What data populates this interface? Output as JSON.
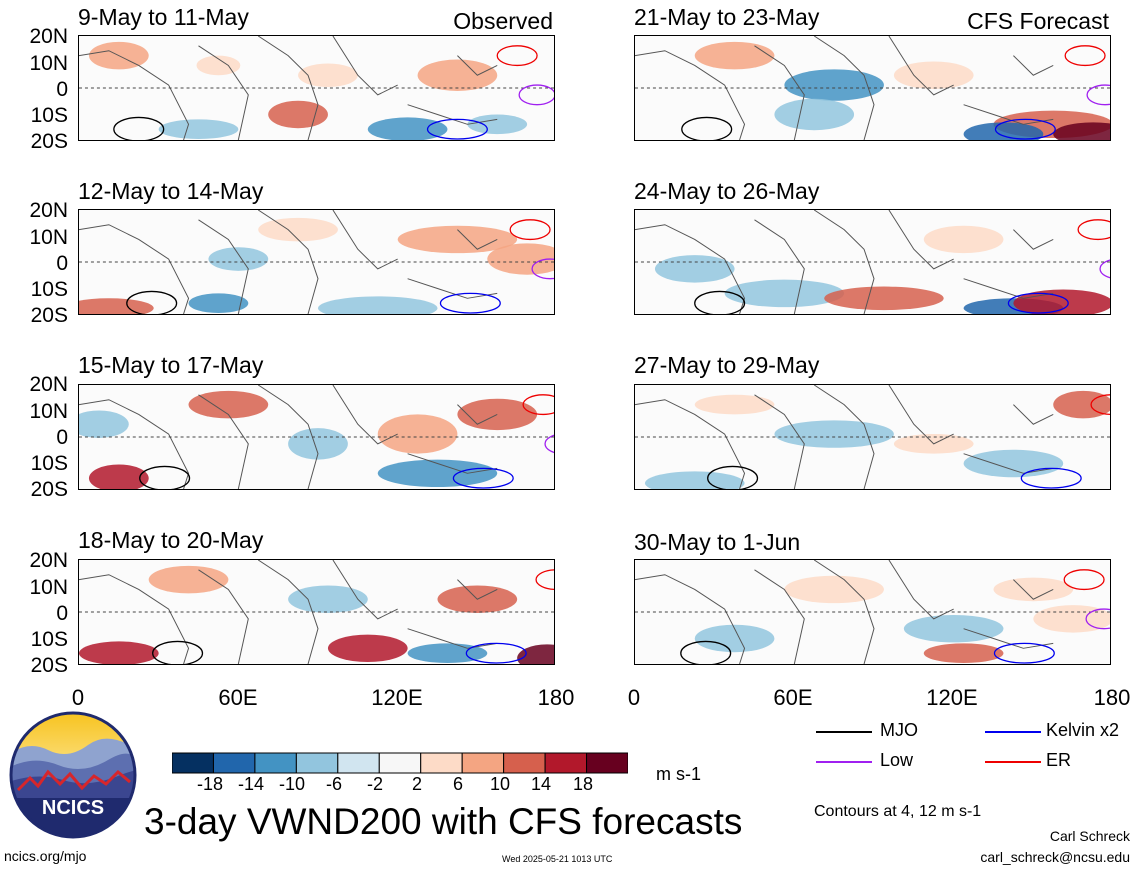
{
  "header": {
    "observed_label": "Observed",
    "forecast_label": "CFS Forecast"
  },
  "panels_left": [
    {
      "title": "9-May to 11-May"
    },
    {
      "title": "12-May to 14-May"
    },
    {
      "title": "15-May to 17-May"
    },
    {
      "title": "18-May to 20-May"
    }
  ],
  "panels_right": [
    {
      "title": "21-May to 23-May"
    },
    {
      "title": "24-May to 26-May"
    },
    {
      "title": "27-May to 29-May"
    },
    {
      "title": "30-May to 1-Jun"
    }
  ],
  "axes": {
    "y_ticks": [
      "20N",
      "10N",
      "0",
      "10S",
      "20S"
    ],
    "x_ticks": [
      "0",
      "60E",
      "120E",
      "180"
    ]
  },
  "colorbar": {
    "ticks": [
      "-18",
      "-14",
      "-10",
      "-6",
      "-2",
      "2",
      "6",
      "10",
      "14",
      "18"
    ],
    "colors": [
      "#053061",
      "#2166ac",
      "#4393c3",
      "#92c5de",
      "#d1e5f0",
      "#f7f7f7",
      "#fddbc7",
      "#f4a582",
      "#d6604d",
      "#b2182b",
      "#67001f"
    ],
    "unit": "m s-1"
  },
  "legend": {
    "items": [
      {
        "label": "MJO",
        "color": "#000000"
      },
      {
        "label": "Kelvin x2",
        "color": "#0000ee"
      },
      {
        "label": "Low",
        "color": "#a020f0"
      },
      {
        "label": "ER",
        "color": "#ee0000"
      }
    ],
    "contours_note": "Contours at 4, 12 m s-1"
  },
  "logo": {
    "text": "NCICS"
  },
  "main_title": "3-day VWND200 with CFS forecasts",
  "footer": {
    "url": "ncics.org/mjo",
    "timestamp": "Wed 2025-05-21 1013 UTC",
    "author": "Carl Schreck",
    "email": "carl_schreck@ncsu.edu"
  }
}
